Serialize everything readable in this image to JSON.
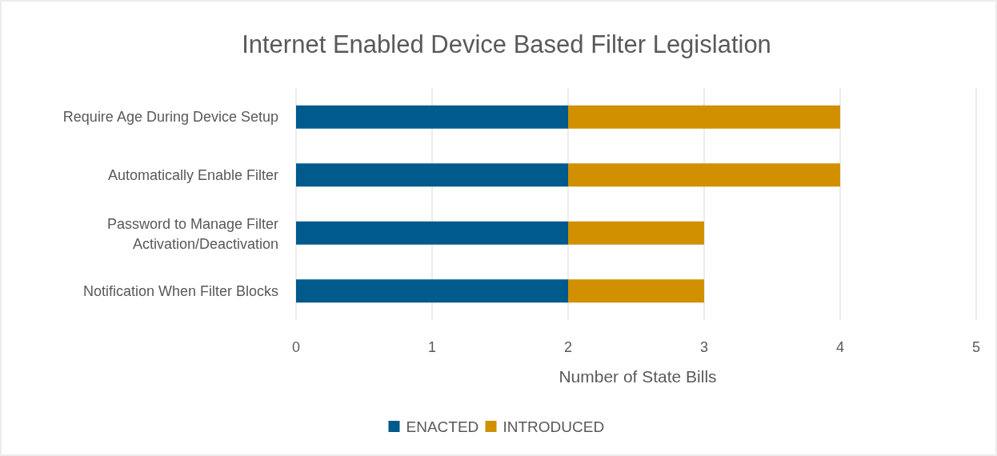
{
  "chart_data": {
    "type": "bar",
    "orientation": "horizontal",
    "stacked": true,
    "title": "Internet Enabled Device Based Filter Legislation",
    "xlabel": "Number of State Bills",
    "categories": [
      "Require Age During Device Setup",
      "Automatically Enable Filter",
      "Password to Manage Filter Activation/Deactivation",
      "Notification When Filter Blocks"
    ],
    "series": [
      {
        "name": "ENACTED",
        "color": "#005a8c",
        "values": [
          2,
          2,
          2,
          2
        ]
      },
      {
        "name": "INTRODUCED",
        "color": "#d09000",
        "values": [
          2,
          2,
          1,
          1
        ]
      }
    ],
    "xlim": [
      0,
      5
    ],
    "xticks": [
      0,
      1,
      2,
      3,
      4,
      5
    ],
    "grid": "x",
    "legend": "bottom"
  }
}
